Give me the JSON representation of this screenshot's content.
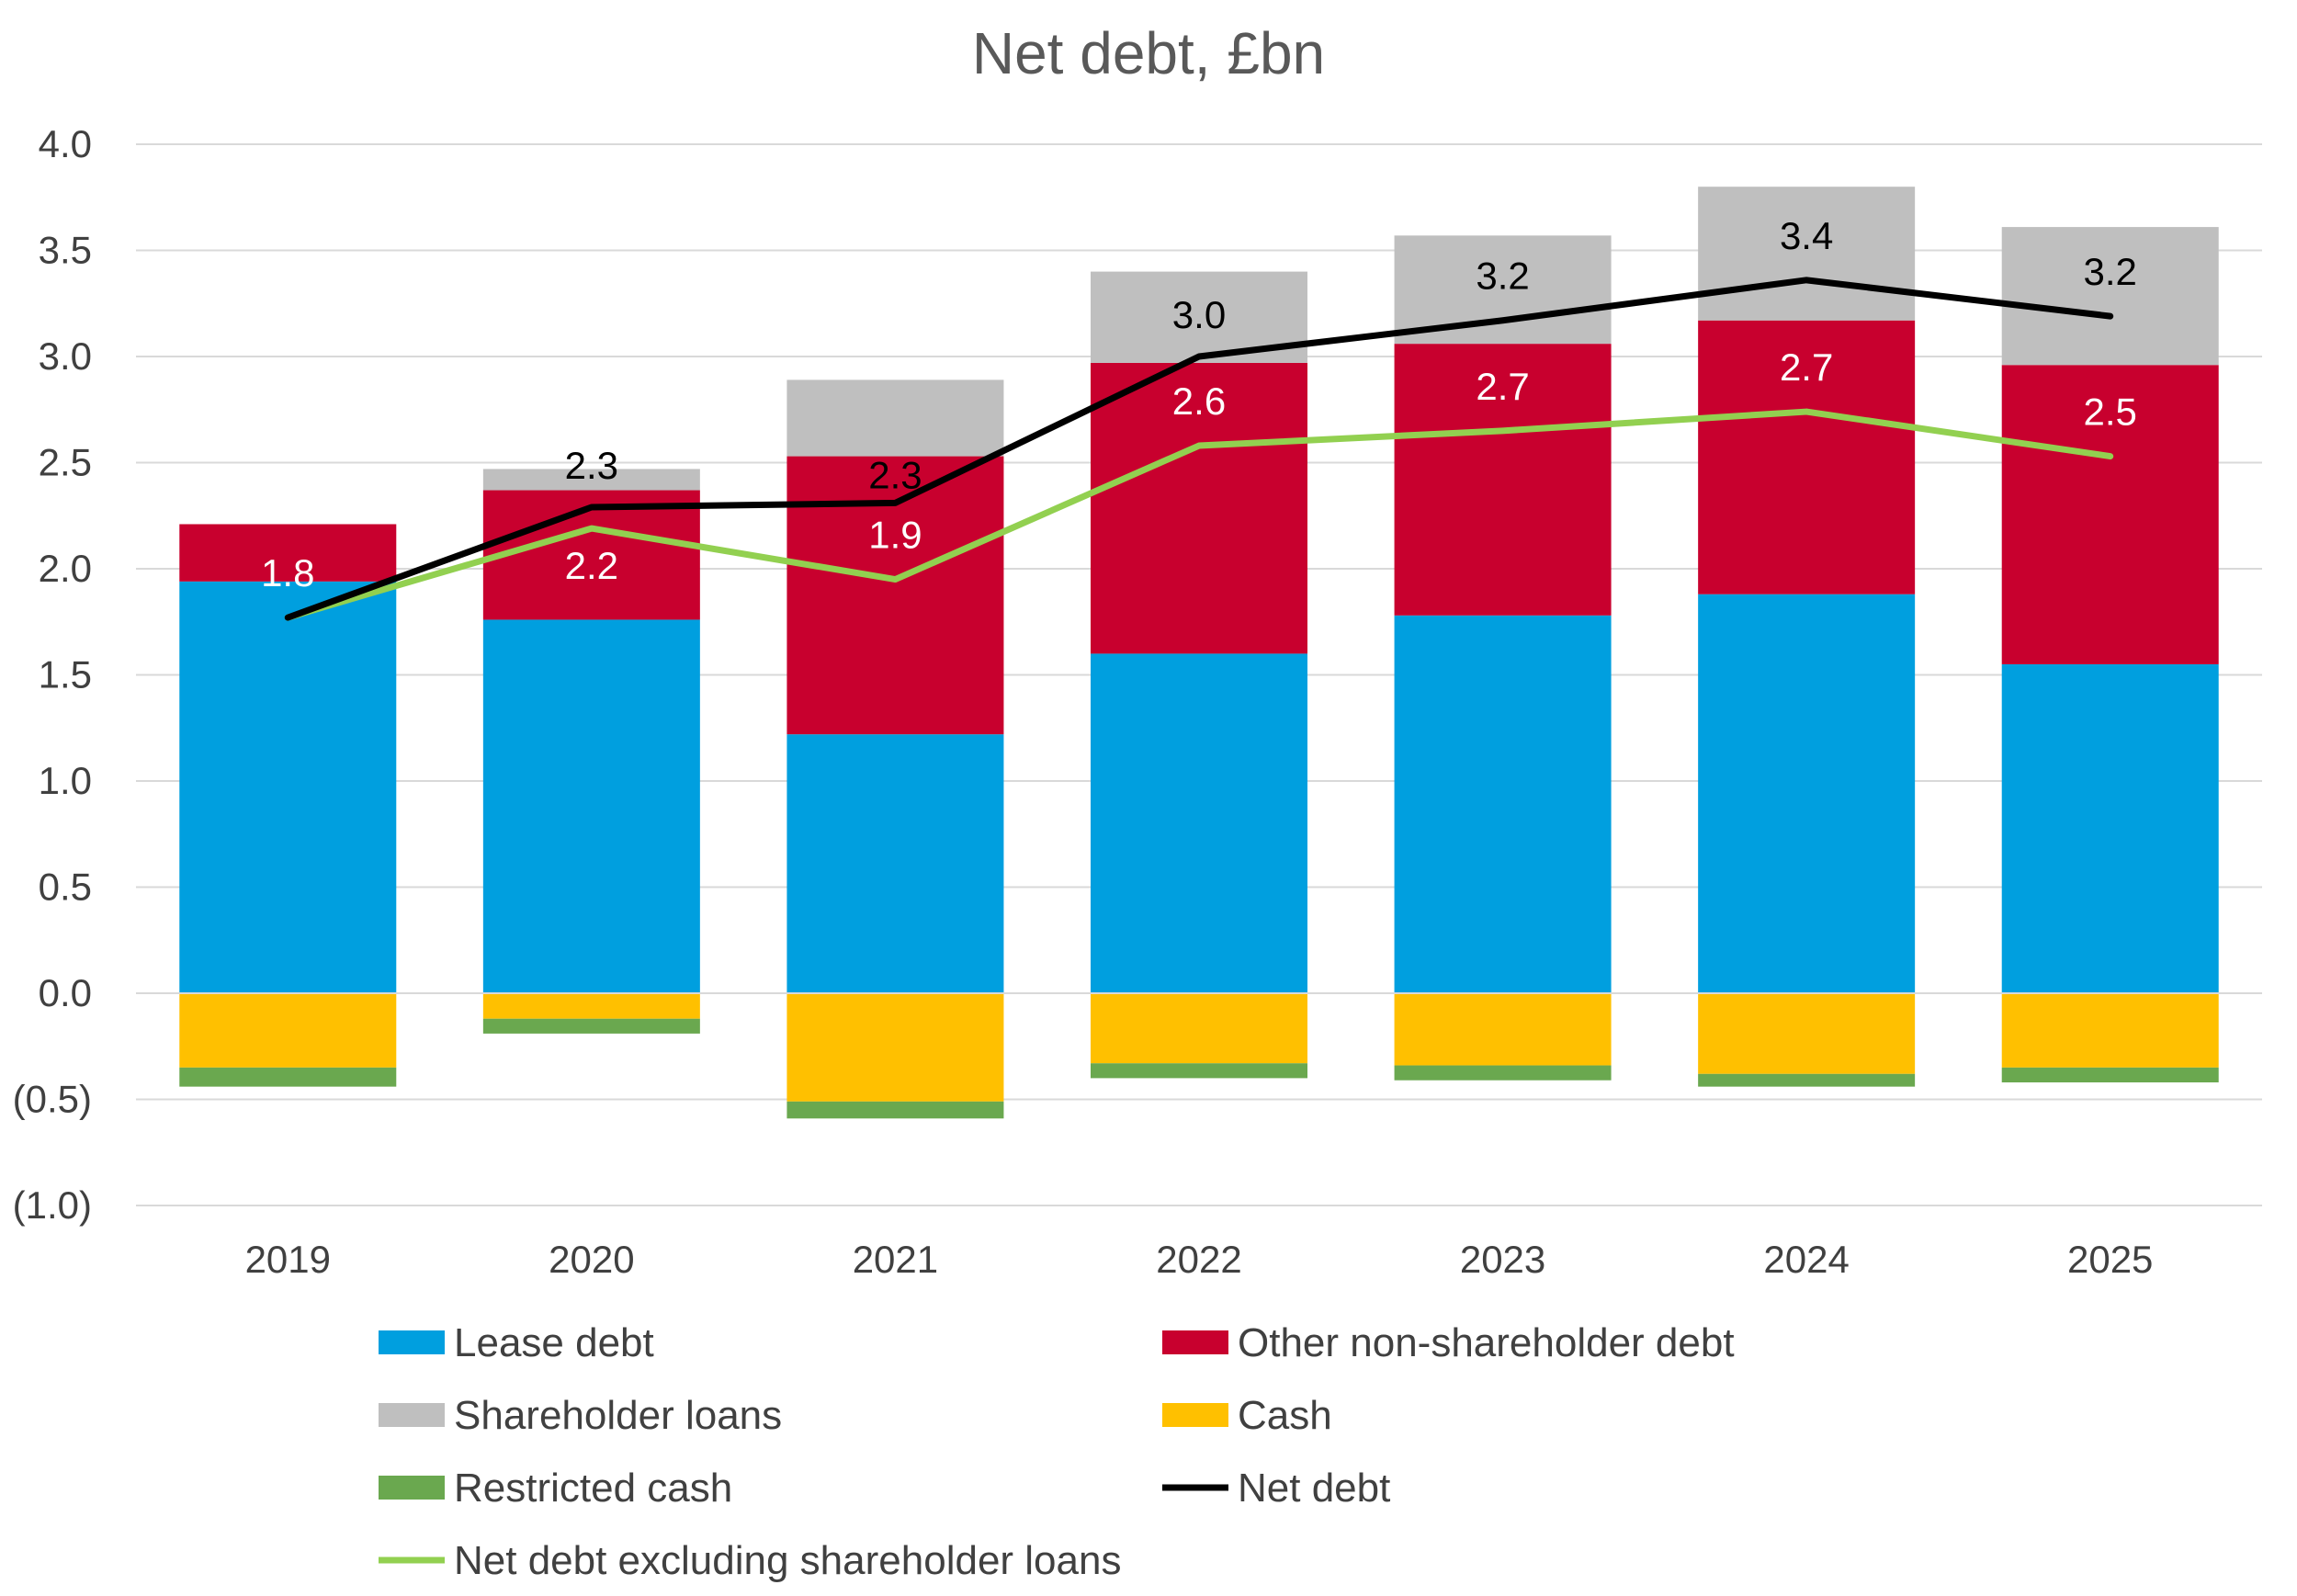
{
  "chart_data": {
    "type": "bar",
    "stacked": true,
    "title": "Net debt, £bn",
    "xlabel": "",
    "ylabel": "",
    "categories": [
      "2019",
      "2020",
      "2021",
      "2022",
      "2023",
      "2024",
      "2025"
    ],
    "ylim": [
      -1.0,
      4.0
    ],
    "y_ticks": [
      {
        "value": 4.0,
        "label": "4.0"
      },
      {
        "value": 3.5,
        "label": "3.5"
      },
      {
        "value": 3.0,
        "label": "3.0"
      },
      {
        "value": 2.5,
        "label": "2.5"
      },
      {
        "value": 2.0,
        "label": "2.0"
      },
      {
        "value": 1.5,
        "label": "1.5"
      },
      {
        "value": 1.0,
        "label": "1.0"
      },
      {
        "value": 0.5,
        "label": "0.5"
      },
      {
        "value": 0.0,
        "label": "0.0"
      },
      {
        "value": -0.5,
        "label": "(0.5)"
      },
      {
        "value": -1.0,
        "label": "(1.0)"
      }
    ],
    "grid": true,
    "legend_position": "bottom",
    "bar_series": [
      {
        "name": "Lease debt",
        "color": "#009FDF",
        "values": [
          1.94,
          1.76,
          1.22,
          1.6,
          1.78,
          1.88,
          1.55
        ]
      },
      {
        "name": "Other non-shareholder debt",
        "color": "#C8002E",
        "values": [
          0.27,
          0.61,
          1.31,
          1.37,
          1.28,
          1.29,
          1.41
        ]
      },
      {
        "name": "Shareholder loans",
        "color": "#BFBFBF",
        "values": [
          0.0,
          0.1,
          0.36,
          0.43,
          0.51,
          0.63,
          0.65
        ]
      },
      {
        "name": "Cash",
        "color": "#FFC000",
        "values": [
          -0.35,
          -0.12,
          -0.51,
          -0.33,
          -0.34,
          -0.38,
          -0.35
        ]
      },
      {
        "name": "Restricted cash",
        "color": "#6AA84F",
        "values": [
          -0.09,
          -0.07,
          -0.08,
          -0.07,
          -0.07,
          -0.06,
          -0.07
        ]
      }
    ],
    "line_series": [
      {
        "name": "Net debt",
        "color": "#000000",
        "values": [
          1.77,
          2.29,
          2.31,
          3.0,
          3.17,
          3.36,
          3.19
        ]
      },
      {
        "name": "Net debt excluding shareholder loans",
        "color": "#92D050",
        "values": [
          1.77,
          2.19,
          1.95,
          2.58,
          2.65,
          2.74,
          2.53
        ]
      }
    ],
    "data_labels": [
      {
        "series": "Net debt",
        "color": "#000000",
        "labels": [
          "",
          "2.3",
          "2.3",
          "3.0",
          "3.2",
          "3.4",
          "3.2"
        ]
      },
      {
        "series": "Net debt excluding shareholder loans",
        "color": "#FFFFFF",
        "labels": [
          "1.8",
          "2.2",
          "1.9",
          "2.6",
          "2.7",
          "2.7",
          "2.5"
        ]
      }
    ]
  }
}
